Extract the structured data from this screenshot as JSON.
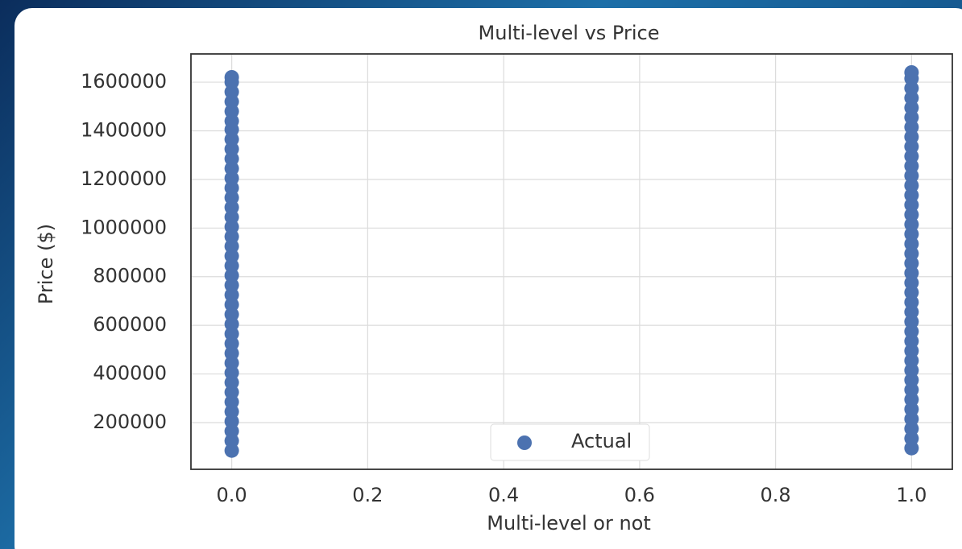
{
  "chart_data": {
    "type": "scatter",
    "title": "Multi-level vs Price",
    "xlabel": "Multi-level or not",
    "ylabel": "Price ($)",
    "series": [
      {
        "name": "Actual",
        "color": "#4c72b0",
        "x": [
          0,
          0,
          0,
          0,
          0,
          0,
          0,
          0,
          0,
          0,
          0,
          0,
          0,
          0,
          0,
          0,
          0,
          0,
          0,
          0,
          0,
          0,
          0,
          0,
          0,
          0,
          0,
          0,
          0,
          0,
          0,
          0,
          0,
          0,
          0,
          0,
          0,
          0,
          0,
          0,
          1,
          1,
          1,
          1,
          1,
          1,
          1,
          1,
          1,
          1,
          1,
          1,
          1,
          1,
          1,
          1,
          1,
          1,
          1,
          1,
          1,
          1,
          1,
          1,
          1,
          1,
          1,
          1,
          1,
          1,
          1,
          1,
          1,
          1,
          1,
          1,
          1,
          1,
          1,
          1
        ],
        "values": [
          85000,
          125000,
          165000,
          205000,
          245000,
          285000,
          325000,
          365000,
          405000,
          445000,
          485000,
          525000,
          565000,
          605000,
          645000,
          685000,
          725000,
          765000,
          805000,
          845000,
          885000,
          925000,
          965000,
          1005000,
          1045000,
          1085000,
          1125000,
          1165000,
          1205000,
          1245000,
          1285000,
          1325000,
          1365000,
          1405000,
          1440000,
          1480000,
          1520000,
          1560000,
          1600000,
          1620000,
          95000,
          135000,
          175000,
          215000,
          255000,
          295000,
          335000,
          375000,
          415000,
          455000,
          495000,
          535000,
          575000,
          615000,
          655000,
          695000,
          735000,
          775000,
          815000,
          855000,
          895000,
          935000,
          975000,
          1015000,
          1055000,
          1095000,
          1135000,
          1175000,
          1215000,
          1255000,
          1295000,
          1335000,
          1375000,
          1415000,
          1455000,
          1495000,
          1535000,
          1575000,
          1615000,
          1640000
        ]
      }
    ],
    "xlim": [
      -0.06,
      1.06
    ],
    "xticks": [
      {
        "value": 0,
        "label": "0.0"
      },
      0.2,
      0.4,
      0.6,
      0.8,
      {
        "value": 1,
        "label": "1.0"
      }
    ],
    "ylim": [
      8000,
      1716000
    ],
    "yticks": [
      200000,
      400000,
      600000,
      800000,
      1000000,
      1200000,
      1400000,
      1600000
    ],
    "grid": true,
    "legend": "lower center"
  }
}
